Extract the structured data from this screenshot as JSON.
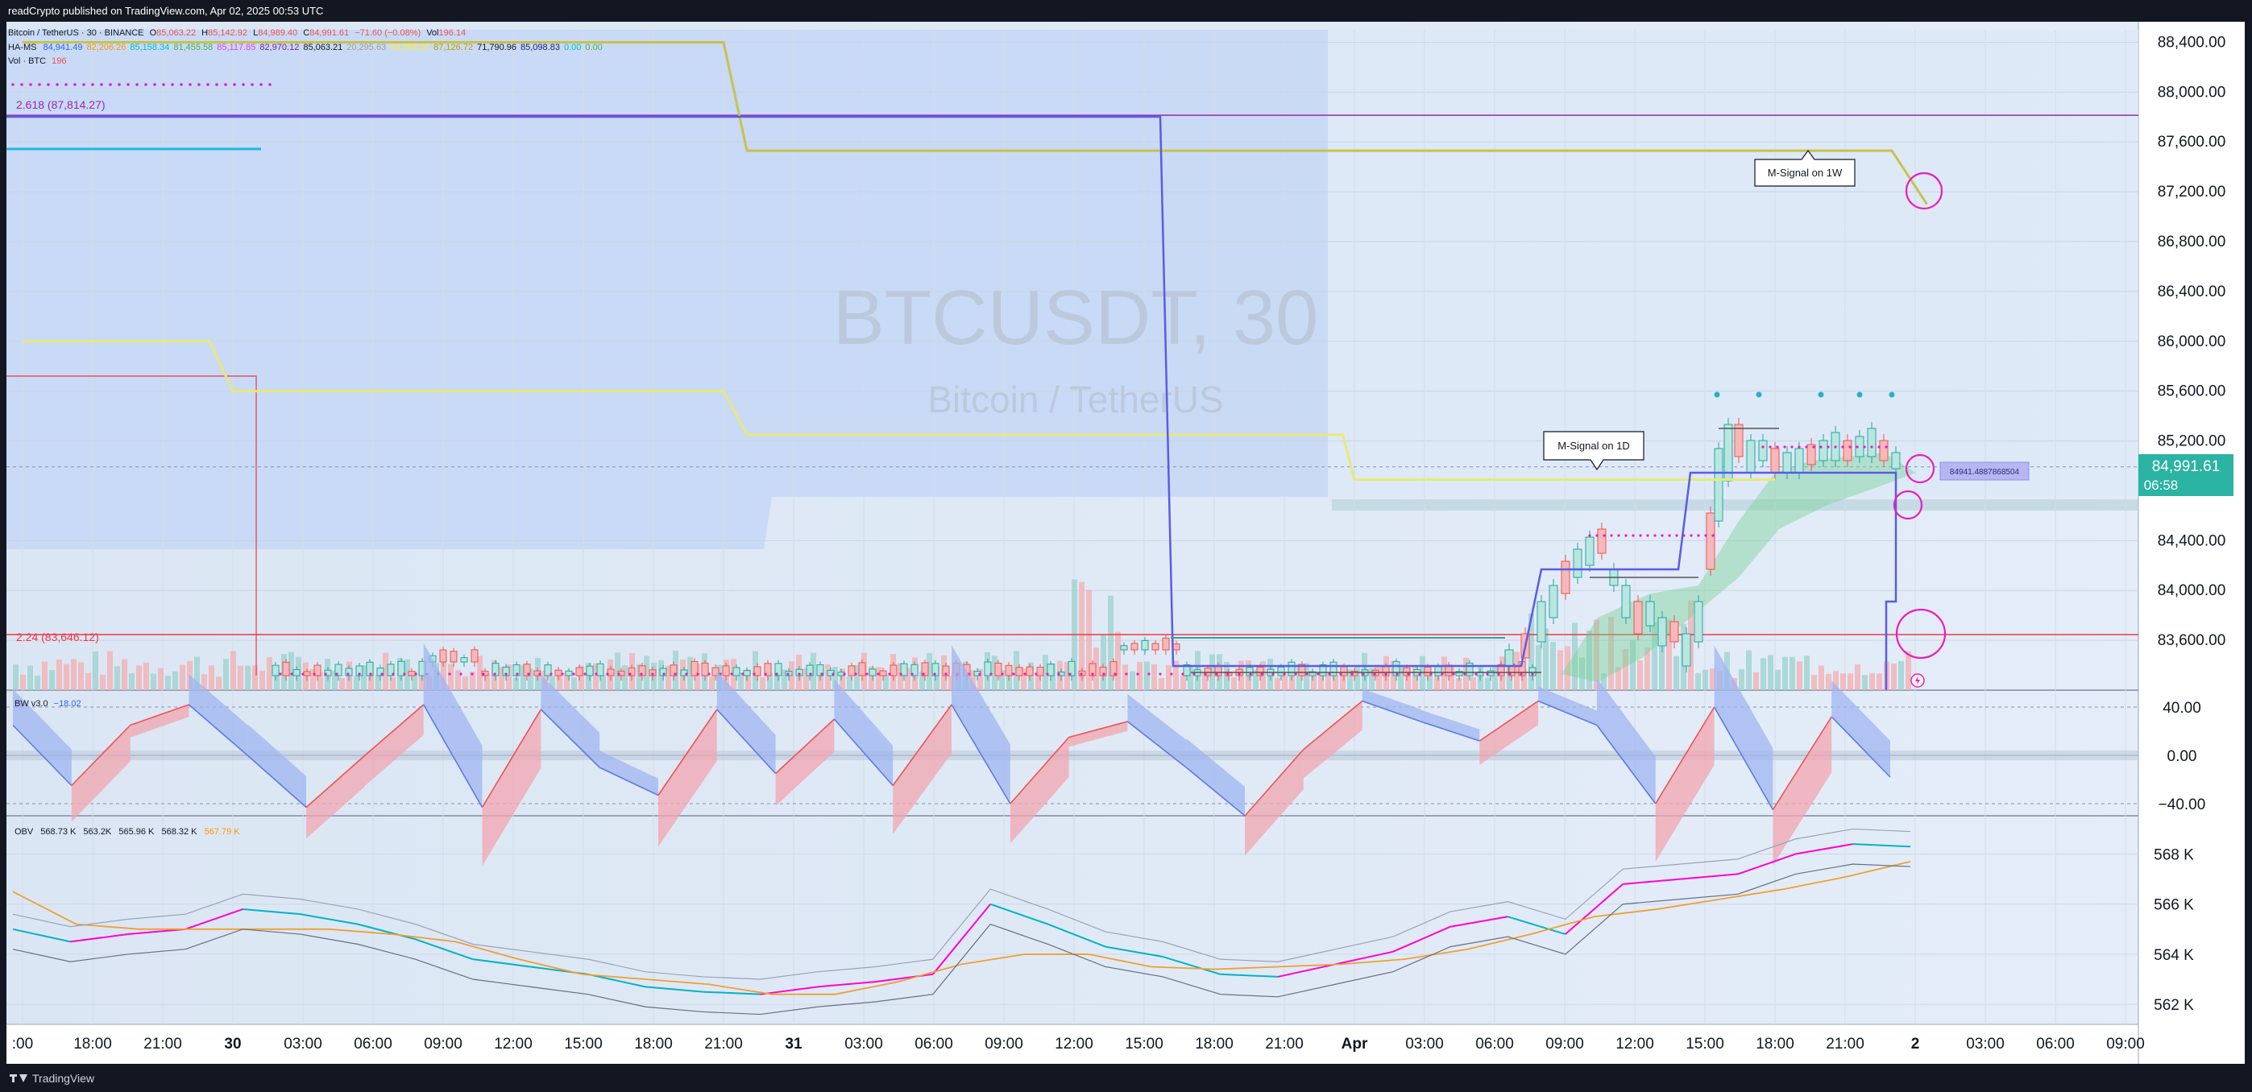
{
  "header": {
    "publisher_line": "readCrypto published on TradingView.com, Apr 02, 2025 00:53 UTC"
  },
  "footer": {
    "brand": "TradingView"
  },
  "legend": {
    "main": {
      "symbol": "Bitcoin / TetherUS · 30 · BINANCE",
      "o_label": "O",
      "o": "85,063.22",
      "h_label": "H",
      "h": "85,142.92",
      "l_label": "L",
      "l": "84,989.40",
      "c_label": "C",
      "c": "84,991.61",
      "change": "−71.60 (−0.08%)",
      "vol_label": "Vol",
      "vol": "196.14"
    },
    "hams": {
      "label": "HA-MS",
      "values": [
        "84,941.49",
        "82,206.26",
        "85,158.34",
        "81,455.58",
        "85,117.85",
        "82,970.12",
        "85,063.21",
        "20,295.63",
        "84,988.00",
        "87,126.72",
        "71,790.96",
        "85,098.83",
        "0.00",
        "0.00"
      ],
      "colors": [
        "#2962ff",
        "#ff9800",
        "#00bcd4",
        "#4caf50",
        "#e040fb",
        "#7b1fa2",
        "#131722",
        "#9e9e9e",
        "#ffeb3b",
        "#c0a000",
        "#131722",
        "#1a237e",
        "#00bcd4",
        "#4caf50"
      ]
    },
    "vol": {
      "label": "Vol · BTC",
      "value": "196"
    },
    "bw": {
      "label": "BW v3.0",
      "value": "−18.02"
    },
    "obv": {
      "label": "OBV",
      "values": [
        "568.73 K",
        "563.2K",
        "565.96 K",
        "568.32 K",
        "567.79 K"
      ]
    }
  },
  "watermark": {
    "title": "BTCUSDT, 30",
    "subtitle": "Bitcoin / TetherUS"
  },
  "annotations": {
    "fib_2618": "2.618 (87,814.27)",
    "fib_224": "2.24 (83,646.12)",
    "msignal_1w": "M-Signal on 1W",
    "msignal_1d": "M-Signal on 1D",
    "line_tag": "84941.4887868504"
  },
  "price_tag": {
    "price": "84,991.61",
    "countdown": "06:58"
  },
  "colors": {
    "up": "#26a69a",
    "down": "#ef5350",
    "msignal": "#e8e87a",
    "ms_blue": "#5b5be6",
    "pink": "#e91ebc",
    "fib_purple": "#9c27b0",
    "fib_red": "#f23645",
    "price_tag": "#2bb3a3"
  },
  "chart_data": [
    {
      "type": "line",
      "panel": "price",
      "y_axis_ticks": [
        "88,400.00",
        "88,000.00",
        "87,600.00",
        "87,200.00",
        "86,800.00",
        "86,400.00",
        "86,000.00",
        "85,600.00",
        "85,200.00",
        "84,400.00",
        "84,000.00",
        "83,600.00"
      ],
      "ylim": [
        83200,
        88500
      ],
      "x_axis_ticks": [
        ":00",
        "18:00",
        "21:00",
        "30",
        "03:00",
        "06:00",
        "09:00",
        "12:00",
        "15:00",
        "18:00",
        "21:00",
        "31",
        "03:00",
        "06:00",
        "09:00",
        "12:00",
        "15:00",
        "18:00",
        "21:00",
        "Apr",
        "03:00",
        "06:00",
        "09:00",
        "12:00",
        "15:00",
        "18:00",
        "21:00",
        "2",
        "03:00",
        "06:00",
        "09:00"
      ],
      "last_price": 84991.61,
      "series": [
        {
          "name": "M-Signal on 1W",
          "x": [
            "Mar 29 15:00",
            "Mar 30 21:00",
            "Mar 30 22:00",
            "Apr 1 23:00",
            "Apr 2 00:30"
          ],
          "values": [
            88400,
            88400,
            87530,
            87530,
            87100
          ]
        },
        {
          "name": "M-Signal on 1D",
          "x": [
            "Mar 29 15:00",
            "Mar 29 23:00",
            "Mar 30 00:00",
            "Mar 30 21:00",
            "Mar 30 22:00",
            "Mar 31 23:30",
            "Apr 1 00:00",
            "Apr 1 18:00"
          ],
          "values": [
            86000,
            86000,
            85600,
            85600,
            85250,
            85250,
            84890,
            84890
          ]
        }
      ],
      "levels": [
        {
          "label": "2.618 (87,814.27)",
          "value": 87814.27
        },
        {
          "label": "2.24 (83,646.12)",
          "value": 83646.12
        }
      ]
    },
    {
      "type": "area",
      "panel": "BW v3.0",
      "y_axis_ticks": [
        "40.00",
        "0.00",
        "−40.00"
      ],
      "ylim": [
        -50,
        50
      ],
      "last_value": -18.02,
      "values": [
        25,
        -25,
        25,
        42,
        0,
        -43,
        0,
        42,
        -43,
        38,
        -10,
        -33,
        38,
        -15,
        30,
        -25,
        42,
        -40,
        15,
        28,
        -10,
        -50,
        5,
        45,
        28,
        12,
        45,
        25,
        -40,
        40,
        -45,
        32,
        -18
      ]
    },
    {
      "type": "line",
      "panel": "OBV",
      "y_axis_ticks": [
        "568 K",
        "566 K",
        "564 K",
        "562 K"
      ],
      "ylim": [
        561.2,
        569.4
      ],
      "series": [
        {
          "name": "OBV",
          "values": [
            565.0,
            564.5,
            564.8,
            565.0,
            565.8,
            565.6,
            565.2,
            564.6,
            563.8,
            563.5,
            563.2,
            562.7,
            562.5,
            562.4,
            562.7,
            562.9,
            563.2,
            566.0,
            565.2,
            564.3,
            563.9,
            563.2,
            563.1,
            563.6,
            564.1,
            565.1,
            565.5,
            564.8,
            566.8,
            567.0,
            567.2,
            568.0,
            568.4,
            568.3
          ]
        },
        {
          "name": "OBV MA",
          "values": [
            566.5,
            565.2,
            565.0,
            565.0,
            565.0,
            565.0,
            564.8,
            564.5,
            563.8,
            563.2,
            563.0,
            562.8,
            562.4,
            562.4,
            562.9,
            563.6,
            564.0,
            564.0,
            563.5,
            563.4,
            563.5,
            563.6,
            563.8,
            564.2,
            564.8,
            565.5,
            565.8,
            566.2,
            566.6,
            567.1,
            567.7
          ]
        }
      ]
    },
    {
      "type": "bar",
      "panel": "Vol · BTC",
      "last_value": 196
    }
  ]
}
